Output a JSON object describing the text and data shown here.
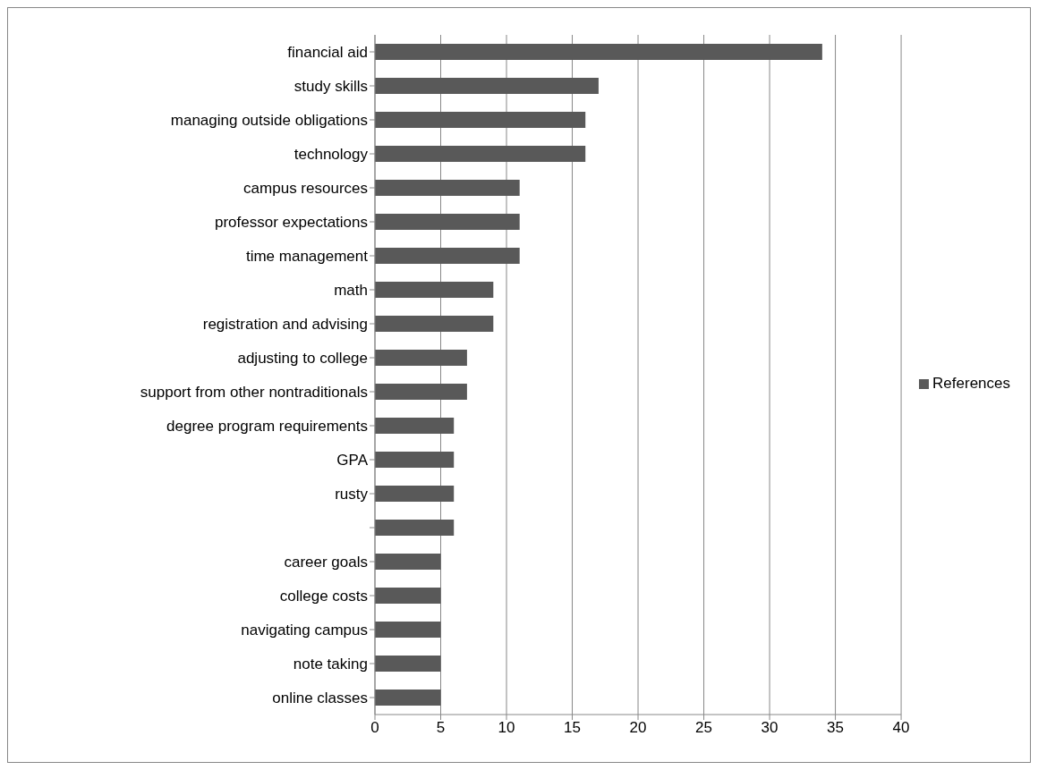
{
  "chart_data": {
    "type": "bar",
    "orientation": "horizontal",
    "categories": [
      "financial aid",
      "study skills",
      "managing outside obligations",
      "technology",
      "campus resources",
      "professor expectations",
      "time management",
      "math",
      "registration and advising",
      "adjusting to college",
      "support from other nontraditionals",
      "degree program requirements",
      "GPA",
      "rusty",
      null,
      "career goals",
      "college costs",
      "navigating campus",
      "note taking",
      "online classes"
    ],
    "series": [
      {
        "name": "References",
        "color": "#595959",
        "values": [
          34,
          17,
          16,
          16,
          11,
          11,
          11,
          9,
          9,
          7,
          7,
          6,
          6,
          6,
          6,
          5,
          5,
          5,
          5,
          5
        ]
      }
    ],
    "xlim": [
      0,
      40
    ],
    "xticks": [
      0,
      5,
      10,
      15,
      20,
      25,
      30,
      35,
      40
    ],
    "grid": "x",
    "legend": "right"
  }
}
